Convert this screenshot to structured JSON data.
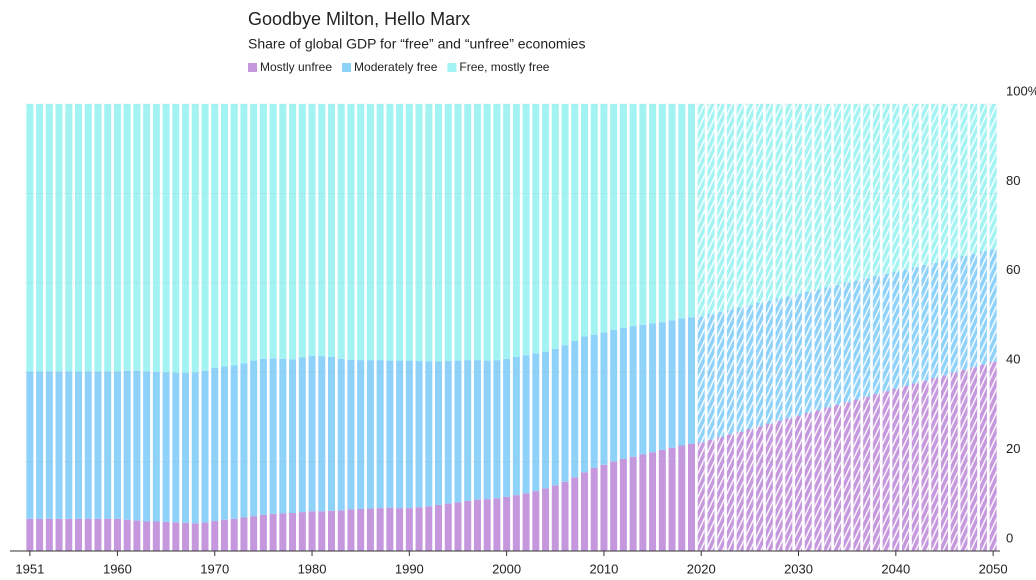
{
  "chart_data": {
    "type": "stacked_bar",
    "title": "Goodbye Milton, Hello Marx",
    "subtitle": "Share of global GDP for “free” and “unfree” economies",
    "x": [
      1951,
      1952,
      1953,
      1954,
      1955,
      1956,
      1957,
      1958,
      1959,
      1960,
      1961,
      1962,
      1963,
      1964,
      1965,
      1966,
      1967,
      1968,
      1969,
      1970,
      1971,
      1972,
      1973,
      1974,
      1975,
      1976,
      1977,
      1978,
      1979,
      1980,
      1981,
      1982,
      1983,
      1984,
      1985,
      1986,
      1987,
      1988,
      1989,
      1990,
      1991,
      1992,
      1993,
      1994,
      1995,
      1996,
      1997,
      1998,
      1999,
      2000,
      2001,
      2002,
      2003,
      2004,
      2005,
      2006,
      2007,
      2008,
      2009,
      2010,
      2011,
      2012,
      2013,
      2014,
      2015,
      2016,
      2017,
      2018,
      2019,
      2020,
      2021,
      2022,
      2023,
      2024,
      2025,
      2026,
      2027,
      2028,
      2029,
      2030,
      2031,
      2032,
      2033,
      2034,
      2035,
      2036,
      2037,
      2038,
      2039,
      2040,
      2041,
      2042,
      2043,
      2044,
      2045,
      2046,
      2047,
      2048,
      2049,
      2050
    ],
    "xlim": [
      1950.5,
      2050.5
    ],
    "xticks": [
      1951,
      1960,
      1970,
      1980,
      1990,
      2000,
      2010,
      2020,
      2030,
      2040,
      2050
    ],
    "ylim": [
      0,
      100
    ],
    "yticks": [
      0,
      20,
      40,
      60,
      80,
      {
        "value": 100,
        "label": "100%"
      }
    ],
    "grid": true,
    "hatch_from": 2020,
    "series": [
      {
        "name": "Mostly unfree",
        "color": "#c597dd",
        "values": [
          7.2,
          7.2,
          7.2,
          7.2,
          7.2,
          7.2,
          7.2,
          7.2,
          7.2,
          7.2,
          7.0,
          6.8,
          6.6,
          6.6,
          6.5,
          6.4,
          6.3,
          6.2,
          6.4,
          6.7,
          7.0,
          7.2,
          7.5,
          7.8,
          8.1,
          8.3,
          8.4,
          8.5,
          8.7,
          8.9,
          8.9,
          9.0,
          9.1,
          9.3,
          9.4,
          9.5,
          9.6,
          9.7,
          9.6,
          9.6,
          9.8,
          10.0,
          10.3,
          10.6,
          10.9,
          11.2,
          11.5,
          11.6,
          11.8,
          12.1,
          12.5,
          12.9,
          13.4,
          14.0,
          14.7,
          15.5,
          16.5,
          17.6,
          18.6,
          19.3,
          20.0,
          20.6,
          21.1,
          21.6,
          22.1,
          22.6,
          23.1,
          23.6,
          24.0,
          24.3,
          24.9,
          25.5,
          26.1,
          26.7,
          27.3,
          27.9,
          28.5,
          29.1,
          29.7,
          30.3,
          30.9,
          31.5,
          32.1,
          32.7,
          33.3,
          33.9,
          34.5,
          35.1,
          35.7,
          36.3,
          36.9,
          37.5,
          38.1,
          38.7,
          39.3,
          39.9,
          40.5,
          41.1,
          41.7,
          42.3
        ]
      },
      {
        "name": "Moderately free",
        "color": "#8ed2fa",
        "values": [
          33.0,
          33.0,
          33.0,
          33.0,
          33.0,
          33.0,
          33.0,
          33.0,
          33.0,
          33.0,
          33.3,
          33.5,
          33.6,
          33.5,
          33.5,
          33.5,
          33.6,
          33.8,
          33.9,
          34.3,
          34.3,
          34.3,
          34.5,
          34.8,
          34.9,
          34.8,
          34.6,
          34.4,
          34.6,
          34.8,
          34.7,
          34.4,
          33.9,
          33.5,
          33.3,
          33.2,
          33.1,
          32.9,
          33.0,
          33.0,
          32.7,
          32.4,
          32.1,
          31.9,
          31.7,
          31.5,
          31.2,
          31.0,
          30.9,
          30.9,
          30.9,
          30.9,
          30.8,
          30.6,
          30.5,
          30.5,
          30.5,
          30.4,
          29.8,
          29.6,
          29.5,
          29.3,
          29.2,
          29.0,
          28.8,
          28.6,
          28.5,
          28.4,
          28.3,
          28.2,
          28.1,
          28.0,
          27.9,
          27.8,
          27.7,
          27.6,
          27.5,
          27.4,
          27.3,
          27.2,
          27.1,
          27.0,
          26.9,
          26.8,
          26.7,
          26.6,
          26.5,
          26.4,
          26.3,
          26.2,
          26.1,
          26.0,
          25.9,
          25.8,
          25.7,
          25.6,
          25.5,
          25.4,
          25.3,
          25.2
        ]
      },
      {
        "name": "Free, mostly free",
        "color": "#a3f3f3",
        "values": [
          59.8,
          59.8,
          59.8,
          59.8,
          59.8,
          59.8,
          59.8,
          59.8,
          59.8,
          59.8,
          59.7,
          59.7,
          59.8,
          59.9,
          60.0,
          60.1,
          60.1,
          60.0,
          59.7,
          59.0,
          58.7,
          58.5,
          58.0,
          57.4,
          57.0,
          56.9,
          57.0,
          57.1,
          56.7,
          56.3,
          56.4,
          56.6,
          57.0,
          57.2,
          57.3,
          57.3,
          57.3,
          57.4,
          57.4,
          57.4,
          57.5,
          57.6,
          57.6,
          57.5,
          57.4,
          57.3,
          57.3,
          57.4,
          57.3,
          57.0,
          56.6,
          56.2,
          55.8,
          55.4,
          54.8,
          54.0,
          53.0,
          52.0,
          51.6,
          51.1,
          50.5,
          50.1,
          49.7,
          49.4,
          49.1,
          48.8,
          48.4,
          48.0,
          47.7,
          47.5,
          47.0,
          46.5,
          46.0,
          45.5,
          45.0,
          44.5,
          44.0,
          43.5,
          43.0,
          42.5,
          42.0,
          41.5,
          41.0,
          40.5,
          40.0,
          39.5,
          39.0,
          38.5,
          38.0,
          37.5,
          37.0,
          36.5,
          36.0,
          35.5,
          35.0,
          34.5,
          34.0,
          33.5,
          33.0,
          32.5
        ]
      }
    ]
  }
}
